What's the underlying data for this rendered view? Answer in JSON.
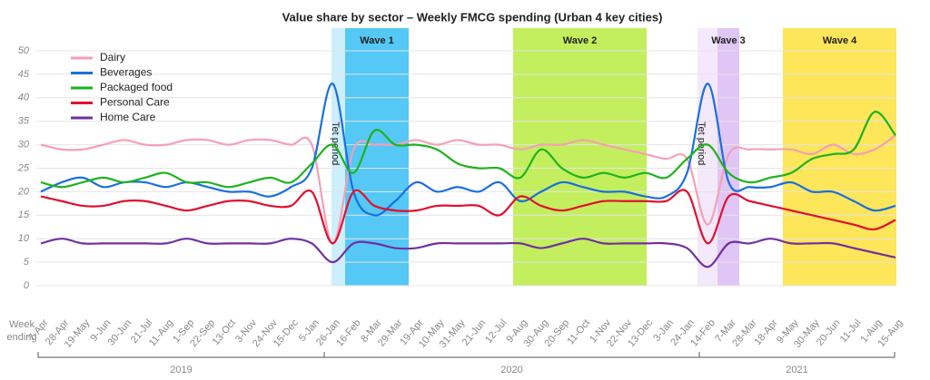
{
  "chart_data": {
    "type": "line",
    "title": "Value share by sector –  Weekly FMCG spending (Urban 4 key cities)",
    "x_axis_label": "Week ending",
    "categories": [
      "7-Apr",
      "28-Apr",
      "19-May",
      "9-Jun",
      "30-Jun",
      "21-Jul",
      "11-Aug",
      "1-Sep",
      "22-Sep",
      "13-Oct",
      "3-Nov",
      "24-Nov",
      "15-Dec",
      "5-Jan",
      "26-Jan",
      "16-Feb",
      "8-Mar",
      "29-Mar",
      "19-Apr",
      "10-May",
      "31-May",
      "21-Jun",
      "12-Jul",
      "9-Aug",
      "30-Aug",
      "20-Sep",
      "11-Oct",
      "1-Nov",
      "22-Nov",
      "13-Dec",
      "3-Jan",
      "24-Jan",
      "14-Feb",
      "7-Mar",
      "28-Mar",
      "18-Apr",
      "9-May",
      "30-May",
      "20-Jun",
      "11-Jul",
      "1-Aug",
      "15-Aug"
    ],
    "series": [
      {
        "name": "Dairy",
        "color": "#f4a0b5",
        "values": [
          30,
          29,
          29,
          30,
          31,
          30,
          30,
          31,
          31,
          30,
          31,
          31,
          30,
          30,
          9,
          29,
          30,
          30,
          31,
          30,
          31,
          30,
          30,
          29,
          30,
          30,
          31,
          30,
          29,
          28,
          27,
          27,
          13,
          28,
          29,
          29,
          29,
          28,
          30,
          28,
          29,
          32
        ]
      },
      {
        "name": "Beverages",
        "color": "#1a6fdf",
        "values": [
          20,
          22,
          23,
          21,
          22,
          22,
          21,
          22,
          21,
          20,
          20,
          19,
          21,
          25,
          43,
          20,
          15,
          18,
          22,
          20,
          21,
          20,
          22,
          18,
          20,
          22,
          21,
          20,
          20,
          19,
          19,
          24,
          43,
          22,
          21,
          21,
          22,
          20,
          20,
          18,
          16,
          17
        ]
      },
      {
        "name": "Packaged food",
        "color": "#1db31d",
        "values": [
          22,
          21,
          22,
          23,
          22,
          23,
          24,
          22,
          22,
          21,
          22,
          23,
          22,
          26,
          30,
          24,
          33,
          30,
          30,
          29,
          26,
          25,
          25,
          23,
          29,
          25,
          23,
          24,
          23,
          24,
          23,
          27,
          30,
          24,
          22,
          23,
          24,
          27,
          28,
          29,
          37,
          32
        ]
      },
      {
        "name": "Personal Care",
        "color": "#e0102f",
        "values": [
          19,
          18,
          17,
          17,
          18,
          18,
          17,
          16,
          17,
          18,
          18,
          17,
          17,
          20,
          9,
          20,
          17,
          16,
          16,
          17,
          17,
          17,
          15,
          19,
          17,
          16,
          17,
          18,
          18,
          18,
          18,
          20,
          9,
          19,
          18,
          17,
          16,
          15,
          14,
          13,
          12,
          14
        ]
      },
      {
        "name": "Home Care",
        "color": "#7030a0",
        "values": [
          9,
          10,
          9,
          9,
          9,
          9,
          9,
          10,
          9,
          9,
          9,
          9,
          10,
          9,
          5,
          9,
          9,
          8,
          8,
          9,
          9,
          9,
          9,
          9,
          8,
          9,
          10,
          9,
          9,
          9,
          9,
          8,
          4,
          9,
          9,
          10,
          9,
          9,
          9,
          8,
          7,
          6
        ]
      }
    ],
    "bands": [
      {
        "label": "Tet period",
        "color": "#cdeefd"
      },
      {
        "label": "Wave 1",
        "color": "#55c8f5"
      },
      {
        "label": "Wave 2",
        "color": "#c3ef5e"
      },
      {
        "label": "Tet period",
        "color": "#f4e8fb"
      },
      {
        "label": "Wave 3",
        "color": "#e0c6f5"
      },
      {
        "label": "Wave 4",
        "color": "#fde65a"
      }
    ],
    "years": [
      "2019",
      "2020",
      "2021"
    ],
    "ylim": [
      0,
      50
    ],
    "yticks": [
      0,
      5,
      10,
      15,
      20,
      25,
      30,
      35,
      40,
      45,
      50
    ],
    "grid": true,
    "legend": "upper left"
  }
}
